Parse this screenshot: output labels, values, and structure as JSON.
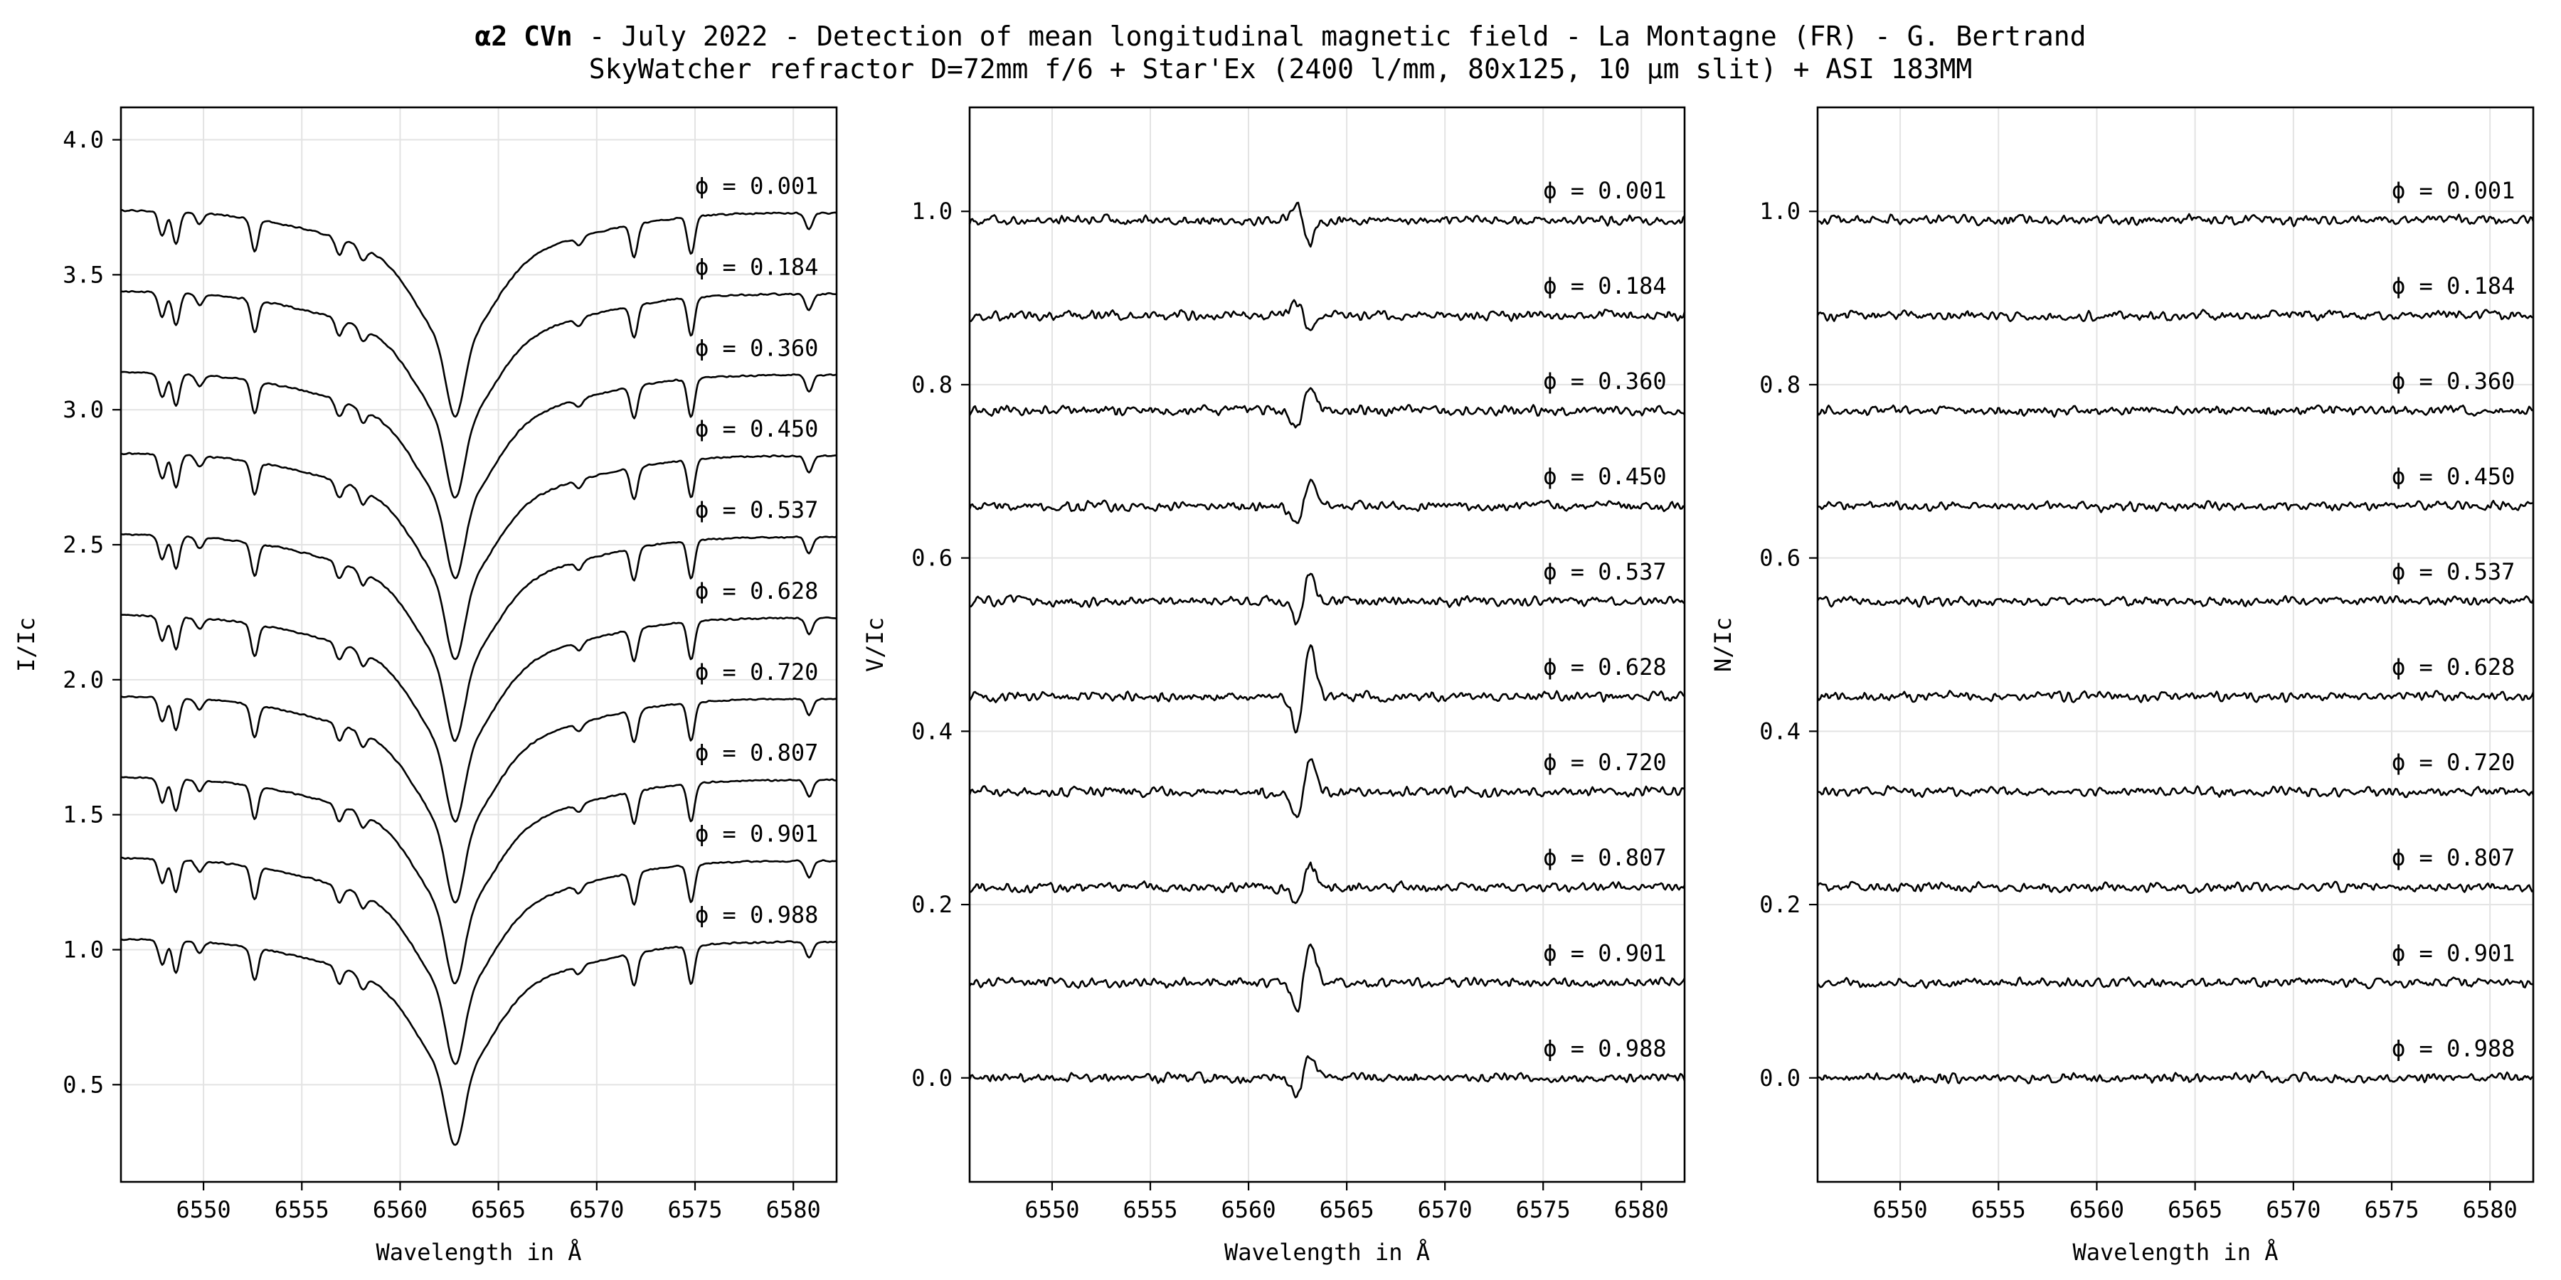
{
  "figure": {
    "title_bold": "α2 CVn",
    "title_rest": " - July 2022 - Detection of mean longitudinal magnetic field - La Montagne (FR) - G. Bertrand",
    "subtitle": "SkyWatcher refractor D=72mm f/6 + Star'Ex (2400 l/mm, 80x125, 10 µm slit) + ASI 183MM"
  },
  "colors": {
    "line": "#000000",
    "grid": "#e3e3e3",
    "background": "#ffffff"
  },
  "chart_data": [
    {
      "type": "line",
      "id": "intensity",
      "xlabel": "Wavelength in Å",
      "ylabel": "I/Ic",
      "xlim": [
        6545.8,
        6582.2
      ],
      "ylim": [
        0.14,
        4.12
      ],
      "xticks": [
        6550,
        6555,
        6560,
        6565,
        6570,
        6575,
        6580
      ],
      "yticks": [
        0.5,
        1.0,
        1.5,
        2.0,
        2.5,
        3.0,
        3.5,
        4.0
      ],
      "ytick_decimals": 1,
      "grid": true,
      "profile": "intensity",
      "label_x": 6575,
      "label_offset": 0.06,
      "series": [
        {
          "phase": "0.001",
          "label": "ϕ = 0.001",
          "offset": 2.7,
          "x": [
            6545.8,
            6563.0,
            6582.2
          ],
          "y": [
            1.04,
            0.25,
            1.03
          ]
        },
        {
          "phase": "0.184",
          "label": "ϕ = 0.184",
          "offset": 2.4,
          "x": [
            6545.8,
            6563.0,
            6582.2
          ],
          "y": [
            1.04,
            0.25,
            1.03
          ]
        },
        {
          "phase": "0.360",
          "label": "ϕ = 0.360",
          "offset": 2.1,
          "x": [
            6545.8,
            6563.0,
            6582.2
          ],
          "y": [
            1.04,
            0.25,
            1.03
          ]
        },
        {
          "phase": "0.450",
          "label": "ϕ = 0.450",
          "offset": 1.8,
          "x": [
            6545.8,
            6563.0,
            6582.2
          ],
          "y": [
            1.04,
            0.25,
            1.03
          ]
        },
        {
          "phase": "0.537",
          "label": "ϕ = 0.537",
          "offset": 1.5,
          "x": [
            6545.8,
            6563.0,
            6582.2
          ],
          "y": [
            1.04,
            0.25,
            1.03
          ]
        },
        {
          "phase": "0.628",
          "label": "ϕ = 0.628",
          "offset": 1.2,
          "x": [
            6545.8,
            6563.0,
            6582.2
          ],
          "y": [
            1.04,
            0.25,
            1.03
          ]
        },
        {
          "phase": "0.720",
          "label": "ϕ = 0.720",
          "offset": 0.9,
          "x": [
            6545.8,
            6563.0,
            6582.2
          ],
          "y": [
            1.04,
            0.25,
            1.03
          ]
        },
        {
          "phase": "0.807",
          "label": "ϕ = 0.807",
          "offset": 0.6,
          "x": [
            6545.8,
            6563.0,
            6582.2
          ],
          "y": [
            1.04,
            0.25,
            1.03
          ]
        },
        {
          "phase": "0.901",
          "label": "ϕ = 0.901",
          "offset": 0.3,
          "x": [
            6545.8,
            6563.0,
            6582.2
          ],
          "y": [
            1.04,
            0.25,
            1.03
          ]
        },
        {
          "phase": "0.988",
          "label": "ϕ = 0.988",
          "offset": 0.0,
          "x": [
            6545.8,
            6563.0,
            6582.2
          ],
          "y": [
            1.04,
            0.25,
            1.03
          ]
        }
      ]
    },
    {
      "type": "line",
      "id": "stokes-v",
      "xlabel": "Wavelength in Å",
      "ylabel": "V/Ic",
      "xlim": [
        6545.8,
        6582.2
      ],
      "ylim": [
        -0.12,
        1.12
      ],
      "xticks": [
        6550,
        6555,
        6560,
        6565,
        6570,
        6575,
        6580
      ],
      "yticks": [
        0.0,
        0.2,
        0.4,
        0.6,
        0.8,
        1.0
      ],
      "ytick_decimals": 1,
      "grid": true,
      "profile": "zeeman",
      "label_x": 6575,
      "label_offset": 0.025,
      "series": [
        {
          "phase": "0.001",
          "label": "ϕ = 0.001",
          "offset": 0.99,
          "signature": -0.03
        },
        {
          "phase": "0.184",
          "label": "ϕ = 0.184",
          "offset": 0.88,
          "signature": -0.02
        },
        {
          "phase": "0.360",
          "label": "ϕ = 0.360",
          "offset": 0.77,
          "signature": 0.03
        },
        {
          "phase": "0.450",
          "label": "ϕ = 0.450",
          "offset": 0.66,
          "signature": 0.03
        },
        {
          "phase": "0.537",
          "label": "ϕ = 0.537",
          "offset": 0.55,
          "signature": 0.035
        },
        {
          "phase": "0.628",
          "label": "ϕ = 0.628",
          "offset": 0.44,
          "signature": 0.06
        },
        {
          "phase": "0.720",
          "label": "ϕ = 0.720",
          "offset": 0.33,
          "signature": 0.04
        },
        {
          "phase": "0.807",
          "label": "ϕ = 0.807",
          "offset": 0.22,
          "signature": 0.03
        },
        {
          "phase": "0.901",
          "label": "ϕ = 0.901",
          "offset": 0.11,
          "signature": 0.05
        },
        {
          "phase": "0.988",
          "label": "ϕ = 0.988",
          "offset": 0.0,
          "signature": 0.03
        }
      ]
    },
    {
      "type": "line",
      "id": "null-n",
      "xlabel": "Wavelength in Å",
      "ylabel": "N/Ic",
      "xlim": [
        6545.8,
        6582.2
      ],
      "ylim": [
        -0.12,
        1.12
      ],
      "xticks": [
        6550,
        6555,
        6560,
        6565,
        6570,
        6575,
        6580
      ],
      "yticks": [
        0.0,
        0.2,
        0.4,
        0.6,
        0.8,
        1.0
      ],
      "ytick_decimals": 1,
      "grid": true,
      "profile": "noise",
      "label_x": 6575,
      "label_offset": 0.025,
      "series": [
        {
          "phase": "0.001",
          "label": "ϕ = 0.001",
          "offset": 0.99
        },
        {
          "phase": "0.184",
          "label": "ϕ = 0.184",
          "offset": 0.88
        },
        {
          "phase": "0.360",
          "label": "ϕ = 0.360",
          "offset": 0.77
        },
        {
          "phase": "0.450",
          "label": "ϕ = 0.450",
          "offset": 0.66
        },
        {
          "phase": "0.537",
          "label": "ϕ = 0.537",
          "offset": 0.55
        },
        {
          "phase": "0.628",
          "label": "ϕ = 0.628",
          "offset": 0.44
        },
        {
          "phase": "0.720",
          "label": "ϕ = 0.720",
          "offset": 0.33
        },
        {
          "phase": "0.807",
          "label": "ϕ = 0.807",
          "offset": 0.22
        },
        {
          "phase": "0.901",
          "label": "ϕ = 0.901",
          "offset": 0.11
        },
        {
          "phase": "0.988",
          "label": "ϕ = 0.988",
          "offset": 0.0
        }
      ]
    }
  ]
}
